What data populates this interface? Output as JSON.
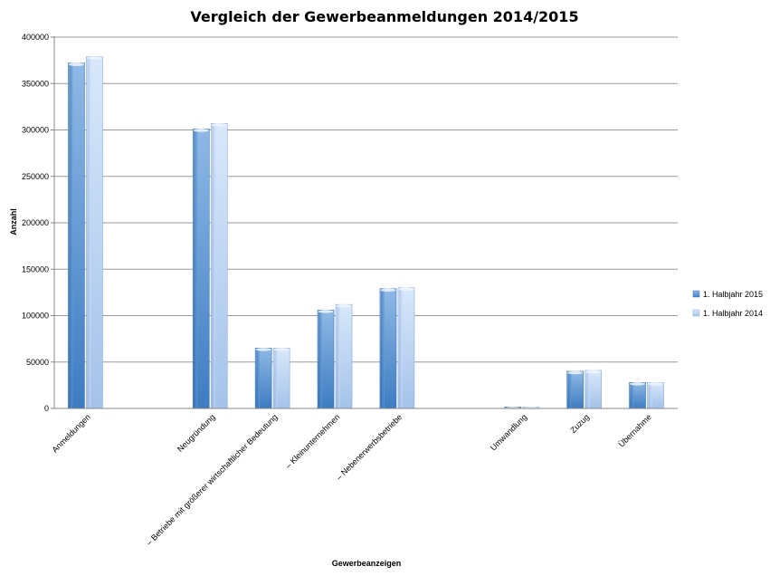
{
  "chart_data": {
    "type": "bar",
    "title": "Vergleich der Gewerbeanmeldungen 2014/2015",
    "xlabel": "Gewerbeanzeigen",
    "ylabel": "Anzahl",
    "ylim": [
      0,
      400000
    ],
    "yticks": [
      0,
      50000,
      100000,
      150000,
      200000,
      250000,
      300000,
      350000,
      400000
    ],
    "ytick_labels": [
      "0",
      "50000",
      "100000",
      "150000",
      "200000",
      "250000",
      "300000",
      "350000",
      "400000"
    ],
    "grid": true,
    "legend_position": "right",
    "categories": [
      "Anmeldungen",
      "",
      "Neugründung",
      "– Betriebe mit größerer wirtschaftlicher Bedeutung",
      "– Kleinunternehmen",
      "– Nebenerwerbsbetriebe",
      "",
      "Umwandlung",
      "Zuzug",
      "Übernahme"
    ],
    "series": [
      {
        "name": "1. Halbjahr 2015",
        "color": "#4a86c8",
        "values": [
          372000,
          null,
          301000,
          65000,
          106000,
          129000,
          null,
          1500,
          40000,
          28000
        ]
      },
      {
        "name": "1. Halbjahr 2014",
        "color": "#a9c8f0",
        "values": [
          379000,
          null,
          307000,
          65000,
          112000,
          130000,
          null,
          1500,
          41000,
          28000
        ]
      }
    ]
  }
}
